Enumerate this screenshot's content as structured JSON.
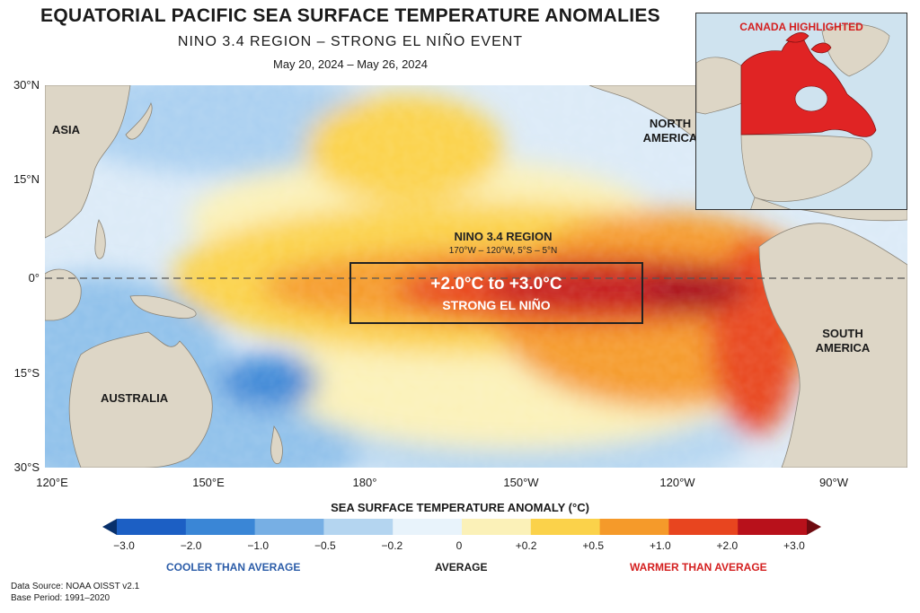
{
  "title": "EQUATORIAL PACIFIC SEA SURFACE TEMPERATURE ANOMALIES",
  "subtitle": "NINO 3.4 REGION – STRONG EL NIÑO EVENT",
  "date_range": "May 20, 2024 – May 26, 2024",
  "map": {
    "lat_labels": [
      "30°N",
      "15°N",
      "0°",
      "15°S",
      "30°S"
    ],
    "lon_labels": [
      "120°E",
      "150°E",
      "180°",
      "150°W",
      "120°W",
      "90°W"
    ],
    "regions": {
      "asia": "ASIA",
      "north_america": "NORTH AMERICA",
      "south_america": "SOUTH AMERICA",
      "australia": "AUSTRALIA"
    },
    "nino_region": {
      "title": "NINO 3.4 REGION",
      "coords": "170°W – 120°W, 5°S – 5°N",
      "anomaly_range": "+2.0°C to +3.0°C",
      "strength": "STRONG EL NIÑO"
    },
    "land_color": "#ddd6c6",
    "equator_line": "dashed"
  },
  "inset": {
    "title": "CANADA HIGHLIGHTED",
    "highlight_color": "#e02424"
  },
  "legend": {
    "title": "SEA SURFACE TEMPERATURE ANOMALY (°C)",
    "ticks": [
      "−3.0",
      "−2.0",
      "−1.0",
      "−0.5",
      "−0.2",
      "0",
      "+0.2",
      "+0.5",
      "+1.0",
      "+2.0",
      "+3.0"
    ],
    "colors": [
      "#08306b",
      "#1c5fc4",
      "#3a86d6",
      "#77afe4",
      "#b4d5f0",
      "#e8f3fb",
      "#fbf1b8",
      "#fbd24a",
      "#f59a2a",
      "#e8451f",
      "#b8111b",
      "#6f0a10"
    ],
    "cooler_label": "COOLER THAN AVERAGE",
    "average_label": "AVERAGE",
    "warmer_label": "WARMER THAN AVERAGE"
  },
  "footer": {
    "source": "Data Source: NOAA OISST v2.1",
    "base_period": "Base Period: 1991–2020"
  }
}
